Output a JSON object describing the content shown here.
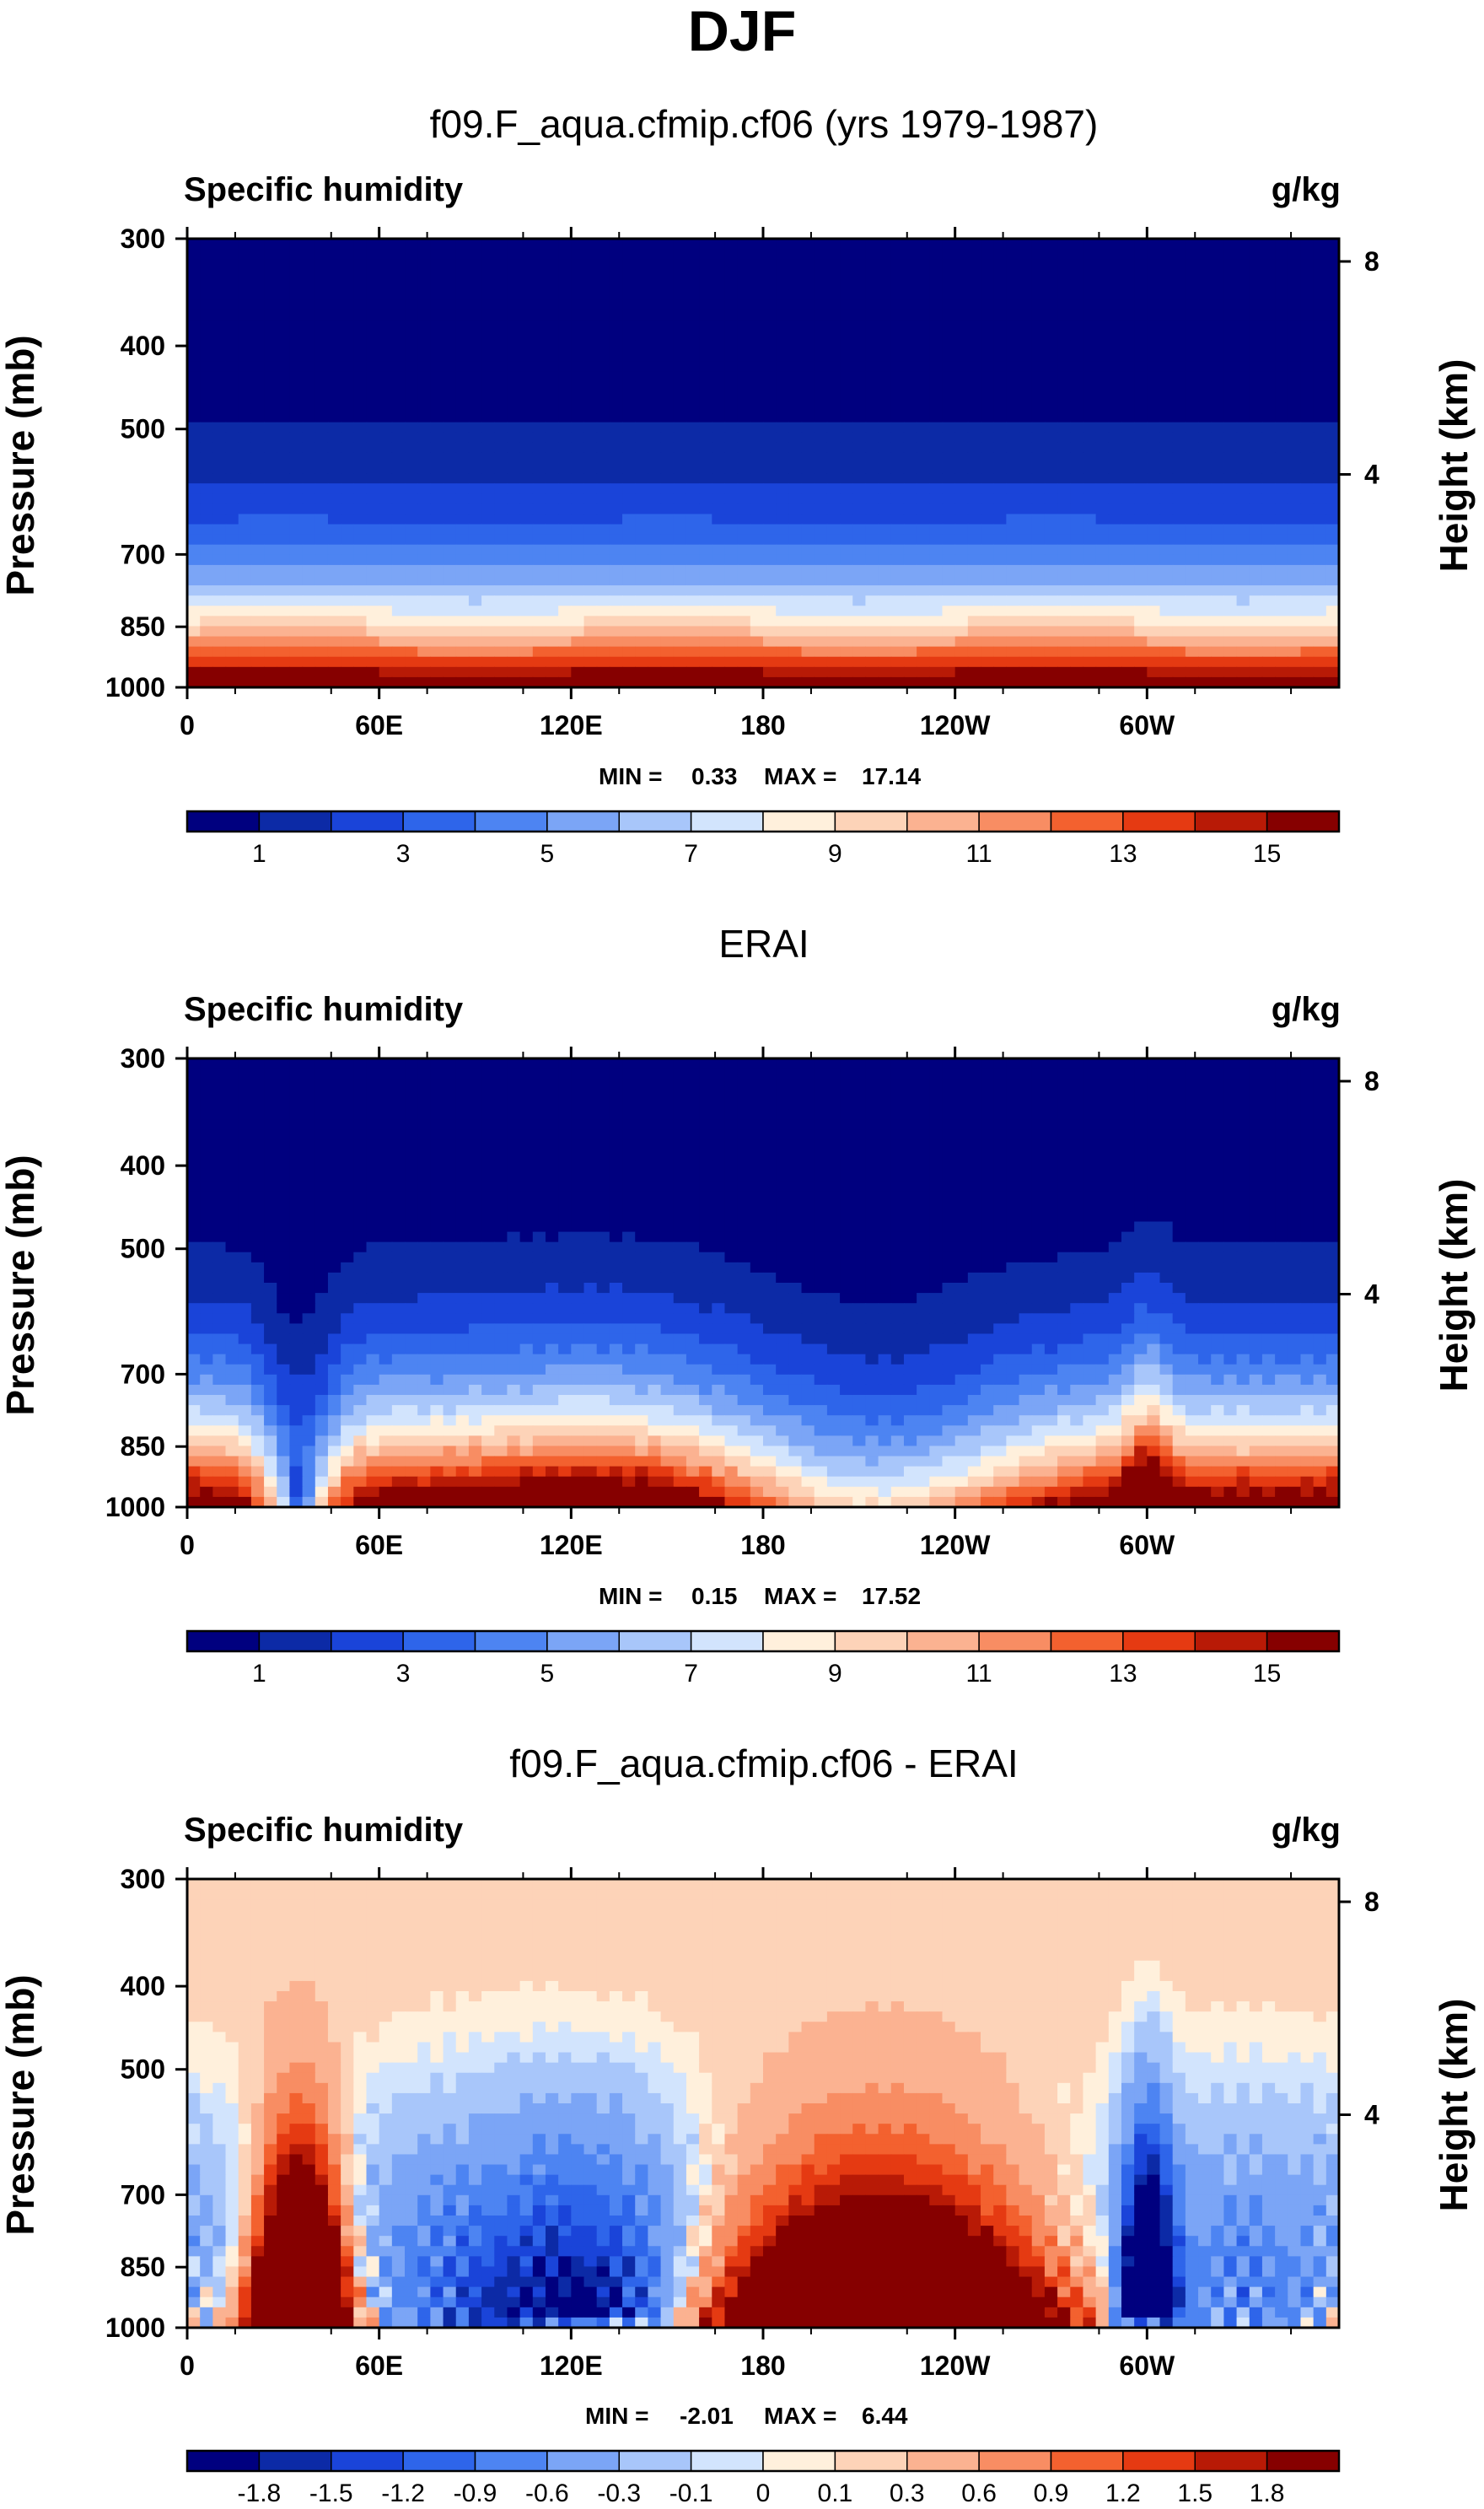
{
  "figure_title": "DJF",
  "colors": [
    "#00007f",
    "#0c2aa6",
    "#1a44d9",
    "#2e65ea",
    "#4d84f2",
    "#7ba5f6",
    "#a8c6fa",
    "#d2e4fd",
    "#fff0dc",
    "#fdd3b8",
    "#fbb291",
    "#f88d63",
    "#f3612f",
    "#e53a12",
    "#b81a06",
    "#860000"
  ],
  "chart_data": [
    {
      "type": "heatmap",
      "title": "f09.F_aqua.cfmip.cf06 (yrs 1979-1987)",
      "corner_left": "Specific humidity",
      "corner_right": "g/kg",
      "xlabel": "",
      "ylabel": "Pressure (mb)",
      "y2label": "Height (km)",
      "x_ticks": [
        "0",
        "60E",
        "120E",
        "180",
        "120W",
        "60W"
      ],
      "y_ticks": [
        "300",
        "400",
        "500",
        "700",
        "850",
        "1000"
      ],
      "y2_ticks": [
        "8",
        "4"
      ],
      "min_label": "MIN = ",
      "min_value": "0.33",
      "max_label": "MAX = ",
      "max_value": "17.14",
      "colorbar_labels": [
        "1",
        "3",
        "5",
        "7",
        "9",
        "11",
        "13",
        "15"
      ],
      "field": "model"
    },
    {
      "type": "heatmap",
      "title": "ERAI",
      "corner_left": "Specific humidity",
      "corner_right": "g/kg",
      "xlabel": "",
      "ylabel": "Pressure (mb)",
      "y2label": "Height (km)",
      "x_ticks": [
        "0",
        "60E",
        "120E",
        "180",
        "120W",
        "60W"
      ],
      "y_ticks": [
        "300",
        "400",
        "500",
        "700",
        "850",
        "1000"
      ],
      "y2_ticks": [
        "8",
        "4"
      ],
      "min_label": "MIN = ",
      "min_value": "0.15",
      "max_label": "MAX = ",
      "max_value": "17.52",
      "colorbar_labels": [
        "1",
        "3",
        "5",
        "7",
        "9",
        "11",
        "13",
        "15"
      ],
      "field": "obs"
    },
    {
      "type": "heatmap",
      "title": "f09.F_aqua.cfmip.cf06 - ERAI",
      "corner_left": "Specific humidity",
      "corner_right": "g/kg",
      "xlabel": "",
      "ylabel": "Pressure (mb)",
      "y2label": "Height (km)",
      "x_ticks": [
        "0",
        "60E",
        "120E",
        "180",
        "120W",
        "60W"
      ],
      "y_ticks": [
        "300",
        "400",
        "500",
        "700",
        "850",
        "1000"
      ],
      "y2_ticks": [
        "8",
        "4"
      ],
      "min_label": "MIN = ",
      "min_value": "-2.01",
      "max_label": "MAX = ",
      "max_value": "6.44",
      "colorbar_labels": [
        "-1.8",
        "-1.5",
        "-1.2",
        "-0.9",
        "-0.6",
        "-0.3",
        "-0.1",
        "0",
        "0.1",
        "0.3",
        "0.6",
        "0.9",
        "1.2",
        "1.5",
        "1.8"
      ],
      "field": "diff"
    }
  ]
}
